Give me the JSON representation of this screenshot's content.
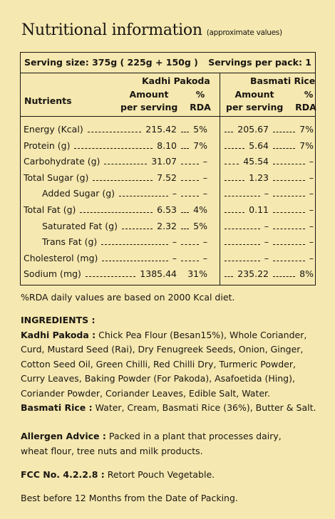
{
  "title": "Nutritional information",
  "title_note": "(approximate values)",
  "serving_size": "Serving size: 375g ( 225g + 150g )",
  "servings_per_pack": "Servings per pack: 1",
  "col_kadhi": "Kadhi Pakoda",
  "col_rice": "Basmati Rice",
  "nutrients_label": "Nutrients",
  "amount_label": "Amount",
  "per_serving_label": "per serving",
  "pct_label": "%",
  "rda_label": "RDA",
  "rows": [
    {
      "name": "Energy (Kcal)",
      "k_amt": "215.42",
      "k_rda": "5%",
      "r_amt": "205.67",
      "r_rda": "7%"
    },
    {
      "name": "Protein (g)",
      "k_amt": "8.10",
      "k_rda": "7%",
      "r_amt": "5.64",
      "r_rda": "7%"
    },
    {
      "name": "Carbohydrate (g)",
      "k_amt": "31.07",
      "k_rda": "–",
      "r_amt": "45.54",
      "r_rda": "–"
    },
    {
      "name": "Total Sugar (g)",
      "k_amt": "7.52",
      "k_rda": "–",
      "r_amt": "1.23",
      "r_rda": "–"
    },
    {
      "name": "Added Sugar (g)",
      "k_amt": "–",
      "k_rda": "–",
      "r_amt": "–",
      "r_rda": "–"
    },
    {
      "name": "Total Fat (g)",
      "k_amt": "6.53",
      "k_rda": "4%",
      "r_amt": "0.11",
      "r_rda": "–"
    },
    {
      "name": "Saturated Fat (g)",
      "k_amt": "2.32",
      "k_rda": "5%",
      "r_amt": "–",
      "r_rda": "–"
    },
    {
      "name": "Trans Fat (g)",
      "k_amt": "–",
      "k_rda": "–",
      "r_amt": "–",
      "r_rda": "–"
    },
    {
      "name": "Cholesterol (mg)",
      "k_amt": "–",
      "k_rda": "–",
      "r_amt": "–",
      "r_rda": "–"
    },
    {
      "name": "Sodium (mg)",
      "k_amt": "1385.44",
      "k_rda": "31%",
      "r_amt": "235.22",
      "r_rda": "8%"
    }
  ],
  "rda_note": "%RDA daily values are based on 2000 Kcal diet.",
  "ingredients_heading": "INGREDIENTS :",
  "kadhi_label": "Kadhi Pakoda :",
  "kadhi_line1": "Chick Pea Flour (Besan15%), Whole Coriander,",
  "kadhi_line2": "Curd, Mustard Seed (Rai), Dry Fenugreek Seeds, Onion, Ginger,",
  "kadhi_line3": "Cotton Seed Oil, Green Chilli, Red Chilli Dry, Turmeric Powder,",
  "kadhi_line4": "Curry Leaves, Baking Powder (For Pakoda), Asafoetida (Hing),",
  "kadhi_line5": "Coriander Powder, Coriander Leaves, Edible Salt, Water.",
  "rice_label": "Basmati Rice :",
  "rice_text": "Water, Cream, Basmati Rice (36%), Butter & Salt.",
  "allergen_label": "Allergen Advice :",
  "allergen_line1": "Packed in a plant that processes dairy,",
  "allergen_line2": "wheat flour, tree nuts and milk products.",
  "fcc_label": "FCC No. 4.2.2.8 :",
  "fcc_text": "Retort Pouch Vegetable.",
  "best_before": "Best before 12 Months from the Date of Packing."
}
